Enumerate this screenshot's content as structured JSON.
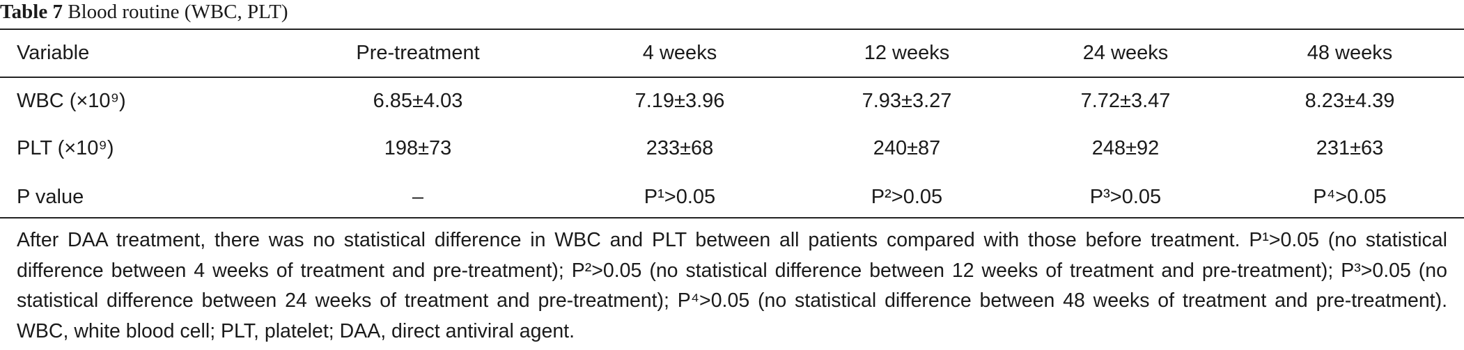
{
  "title": {
    "label": "Table 7",
    "text": "Blood routine (WBC, PLT)"
  },
  "table": {
    "header": [
      "Variable",
      "Pre-treatment",
      "4 weeks",
      "12 weeks",
      "24 weeks",
      "48 weeks"
    ],
    "rows": [
      [
        "WBC (×10⁹)",
        "6.85±4.03",
        "7.19±3.96",
        "7.93±3.27",
        "7.72±3.47",
        "8.23±4.39"
      ],
      [
        "PLT (×10⁹)",
        "198±73",
        "233±68",
        "240±87",
        "248±92",
        "231±63"
      ],
      [
        "P value",
        "–",
        "P¹>0.05",
        "P²>0.05",
        "P³>0.05",
        "P⁴>0.05"
      ]
    ]
  },
  "footnote": "After DAA treatment, there was no statistical difference in WBC and PLT between all patients compared with those before treatment. P¹>0.05 (no statistical difference between 4 weeks of treatment and pre-treatment); P²>0.05 (no statistical difference between 12 weeks of treatment and pre-treatment); P³>0.05 (no statistical difference between 24 weeks of treatment and pre-treatment); P⁴>0.05 (no statistical difference between 48 weeks of treatment and pre-treatment). WBC, white blood cell; PLT, platelet; DAA, direct antiviral agent."
}
